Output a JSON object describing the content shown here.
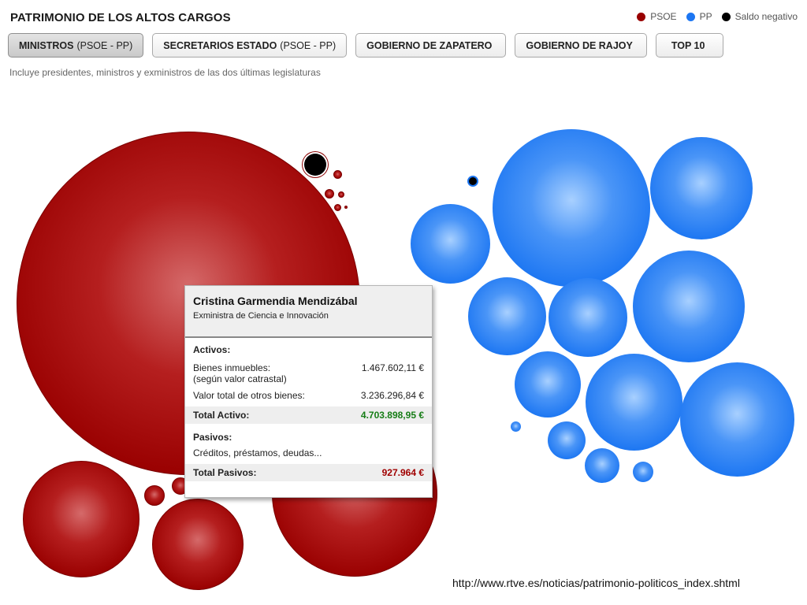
{
  "header": {
    "title": "PATRIMONIO DE LOS ALTOS CARGOS",
    "subtitle": "Incluye presidentes, ministros y exministros de las dos últimas legislaturas"
  },
  "legend": {
    "items": [
      {
        "label": "PSOE",
        "color": "#990000"
      },
      {
        "label": "PP",
        "color": "#1c76f2"
      },
      {
        "label": "Saldo negativo",
        "color": "#000000"
      }
    ]
  },
  "tabs": [
    {
      "bold": "MINISTROS",
      "rest": "(PSOE - PP)",
      "active": true
    },
    {
      "bold": "SECRETARIOS ESTADO",
      "rest": "(PSOE - PP)",
      "active": false
    },
    {
      "bold": "GOBIERNO DE ZAPATERO",
      "rest": "",
      "active": false
    },
    {
      "bold": "GOBIERNO DE RAJOY",
      "rest": "",
      "active": false
    },
    {
      "bold": "TOP 10",
      "rest": "",
      "active": false
    }
  ],
  "tooltip": {
    "name": "Cristina Garmendia Mendizábal",
    "role": "Exministra de Ciencia e Innovación",
    "activos_title": "Activos:",
    "bienes_label_1": "Bienes inmuebles:",
    "bienes_label_2": "(según valor catrastal)",
    "bienes_value": "1.467.602,11 €",
    "otros_label": "Valor total de otros bienes:",
    "otros_value": "3.236.296,84 €",
    "total_activo_label": "Total Activo:",
    "total_activo_value": "4.703.898,95 €",
    "pasivos_title": "Pasivos:",
    "creditos_label": "Créditos, préstamos, deudas...",
    "total_pasivos_label": "Total Pasivos:",
    "total_pasivos_value": "927.964 €"
  },
  "footer": {
    "url": "http://www.rtve.es/noticias/patrimonio-politicos_index.shtml"
  }
}
